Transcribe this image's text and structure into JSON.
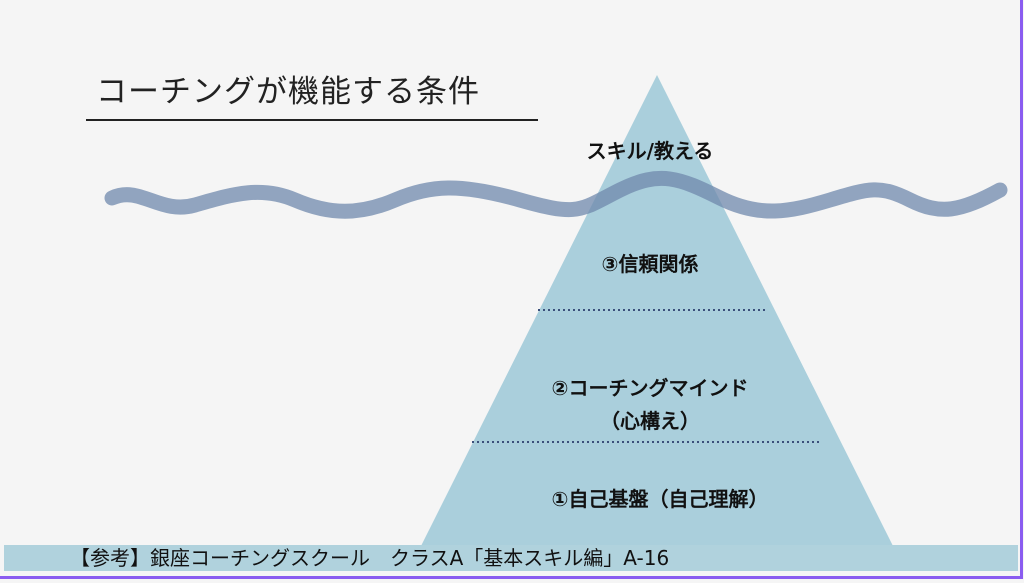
{
  "title": "コーチングが機能する条件",
  "levels": [
    {
      "label": "スキル/教える"
    },
    {
      "label": "③信頼関係"
    },
    {
      "label": "②コーチングマインド",
      "sub": "（心構え）"
    },
    {
      "label": "①自己基盤（自己理解）"
    }
  ],
  "footer": "【参考】銀座コーチングスクール　クラスA「基本スキル編」A-16",
  "colors": {
    "pyramid": "#aacfdc",
    "wave": "#6f88ac",
    "border": "#8a5cf0"
  }
}
